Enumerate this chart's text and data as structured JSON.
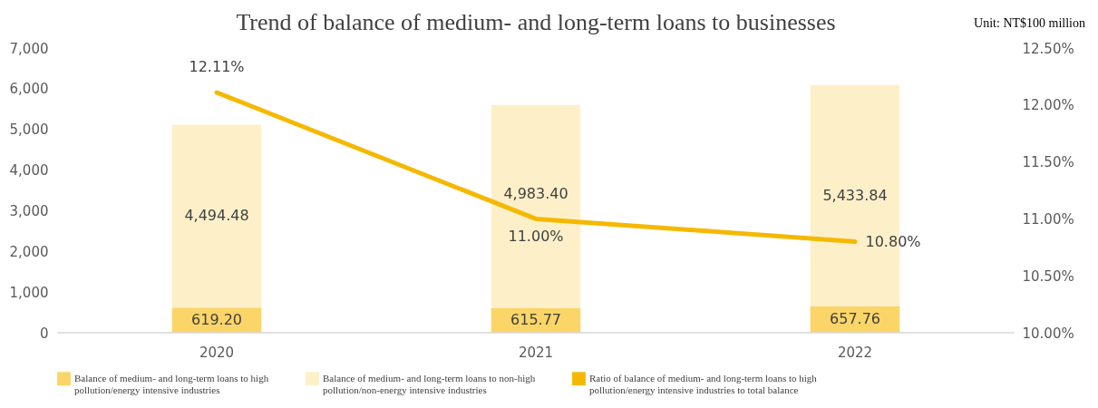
{
  "chart_data": {
    "type": "bar",
    "title": "Trend of balance of medium- and long-term loans to businesses",
    "annotations": [
      "Unit: NT$100 million"
    ],
    "categories": [
      "2020",
      "2021",
      "2022"
    ],
    "stacked": true,
    "legend": "bottom",
    "grid": false,
    "series": [
      {
        "name": "Balance of medium- and long-term loans to high pollution/energy intensive industries",
        "color": "#fbd568",
        "values": [
          619.2,
          615.77,
          657.76
        ],
        "value_labels": [
          "619.20",
          "615.77",
          "657.76"
        ]
      },
      {
        "name": "Balance of medium- and long-term loans to non-high pollution/non-energy intensive industries",
        "color": "#fdf0c9",
        "values": [
          4494.48,
          4983.4,
          5433.84
        ],
        "value_labels": [
          "4,494.48",
          "4,983.40",
          "5,433.84"
        ]
      },
      {
        "name": "Ratio of balance of medium- and long-term loans to high pollution/energy intensive industries to total balance",
        "type": "line",
        "axis": "y2",
        "line_style": "solid",
        "color": "#f5b800",
        "values": [
          12.11,
          11.0,
          10.8
        ],
        "value_labels": [
          "12.11%",
          "11.00%",
          "10.80%"
        ]
      }
    ],
    "ylim": [
      0,
      7000
    ],
    "yticks": [
      0,
      {
        "value": 1000,
        "label": "1,000"
      },
      {
        "value": 2000,
        "label": "2,000"
      },
      {
        "value": 3000,
        "label": "3,000"
      },
      {
        "value": 4000,
        "label": "4,000"
      },
      {
        "value": 5000,
        "label": "5,000"
      },
      {
        "value": 6000,
        "label": "6,000"
      },
      {
        "value": 7000,
        "label": "7,000"
      }
    ],
    "y2lim": [
      10,
      12.5
    ],
    "y2ticks": [
      {
        "value": 10,
        "label": "10.00%"
      },
      {
        "value": 10.5,
        "label": "10.50%"
      },
      {
        "value": 11,
        "label": "11.00%"
      },
      {
        "value": 11.5,
        "label": "11.50%"
      },
      {
        "value": 12,
        "label": "12.00%"
      },
      {
        "value": 12.5,
        "label": "12.50%"
      }
    ]
  }
}
